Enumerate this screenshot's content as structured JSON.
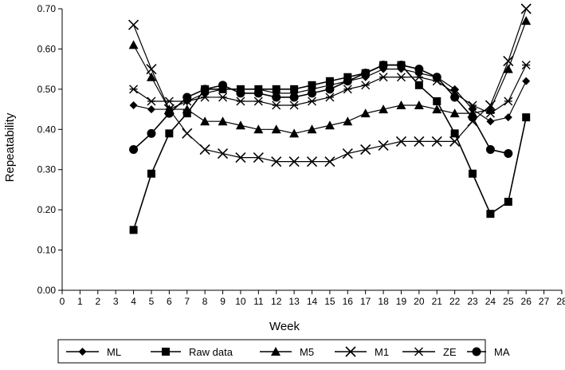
{
  "chart_data": {
    "type": "line",
    "title": "",
    "xlabel": "Week",
    "ylabel": "Repeatability",
    "xlim": [
      0,
      28
    ],
    "ylim": [
      0,
      0.7
    ],
    "x_ticks": [
      "0",
      "1",
      "2",
      "3",
      "4",
      "5",
      "6",
      "7",
      "8",
      "9",
      "10",
      "11",
      "12",
      "13",
      "14",
      "15",
      "16",
      "17",
      "18",
      "19",
      "20",
      "21",
      "22",
      "23",
      "24",
      "25",
      "26",
      "27",
      "28"
    ],
    "y_ticks": [
      "0.00",
      "0.10",
      "0.20",
      "0.30",
      "0.40",
      "0.50",
      "0.60",
      "0.70"
    ],
    "grid": false,
    "legend_position": "bottom",
    "series": [
      {
        "name": "ML",
        "marker": "diamond",
        "x": [
          4,
          5,
          6,
          7,
          8,
          9,
          10,
          11,
          12,
          13,
          14,
          15,
          16,
          17,
          18,
          19,
          20,
          21,
          22,
          23,
          24,
          25,
          26
        ],
        "y": [
          0.46,
          0.45,
          0.45,
          0.47,
          0.49,
          0.5,
          0.5,
          0.5,
          0.49,
          0.49,
          0.5,
          0.51,
          0.52,
          0.53,
          0.55,
          0.55,
          0.54,
          0.53,
          0.5,
          0.45,
          0.42,
          0.43,
          0.52
        ]
      },
      {
        "name": "Raw data",
        "marker": "square",
        "x": [
          4,
          5,
          6,
          7,
          8,
          9,
          10,
          11,
          12,
          13,
          14,
          15,
          16,
          17,
          18,
          19,
          20,
          21,
          22,
          23,
          24,
          25,
          26
        ],
        "y": [
          0.15,
          0.29,
          0.39,
          0.44,
          0.5,
          0.5,
          0.5,
          0.5,
          0.5,
          0.5,
          0.51,
          0.52,
          0.53,
          0.54,
          0.56,
          0.56,
          0.51,
          0.47,
          0.39,
          0.29,
          0.19,
          0.22,
          0.43
        ]
      },
      {
        "name": "M5",
        "marker": "triangle",
        "x": [
          4,
          5,
          6,
          7,
          8,
          9,
          10,
          11,
          12,
          13,
          14,
          15,
          16,
          17,
          18,
          19,
          20,
          21,
          22,
          23,
          24,
          25,
          26
        ],
        "y": [
          0.61,
          0.53,
          0.45,
          0.45,
          0.42,
          0.42,
          0.41,
          0.4,
          0.4,
          0.39,
          0.4,
          0.41,
          0.42,
          0.44,
          0.45,
          0.46,
          0.46,
          0.45,
          0.44,
          0.44,
          0.45,
          0.55,
          0.67
        ]
      },
      {
        "name": "M1",
        "marker": "x",
        "x": [
          4,
          5,
          6,
          7,
          8,
          9,
          10,
          11,
          12,
          13,
          14,
          15,
          16,
          17,
          18,
          19,
          20,
          21,
          22,
          23,
          24,
          25,
          26
        ],
        "y": [
          0.66,
          0.55,
          0.45,
          0.39,
          0.35,
          0.34,
          0.33,
          0.33,
          0.32,
          0.32,
          0.32,
          0.32,
          0.34,
          0.35,
          0.36,
          0.37,
          0.37,
          0.37,
          0.37,
          0.42,
          0.46,
          0.57,
          0.7
        ]
      },
      {
        "name": "ZE",
        "marker": "asterisk",
        "x": [
          4,
          5,
          6,
          7,
          8,
          9,
          10,
          11,
          12,
          13,
          14,
          15,
          16,
          17,
          18,
          19,
          20,
          21,
          22,
          23,
          24,
          25,
          26
        ],
        "y": [
          0.5,
          0.47,
          0.47,
          0.47,
          0.48,
          0.48,
          0.47,
          0.47,
          0.46,
          0.46,
          0.47,
          0.48,
          0.5,
          0.51,
          0.53,
          0.53,
          0.53,
          0.52,
          0.49,
          0.46,
          0.44,
          0.47,
          0.56
        ]
      },
      {
        "name": "MA",
        "marker": "circle",
        "x": [
          4,
          5,
          6,
          7,
          8,
          9,
          10,
          11,
          12,
          13,
          14,
          15,
          16,
          17,
          18,
          19,
          20,
          21,
          22,
          23,
          24,
          25
        ],
        "y": [
          0.35,
          0.39,
          0.44,
          0.48,
          0.5,
          0.51,
          0.49,
          0.49,
          0.48,
          0.48,
          0.49,
          0.5,
          0.52,
          0.54,
          0.56,
          0.56,
          0.55,
          0.53,
          0.48,
          0.43,
          0.35,
          0.34
        ]
      }
    ]
  }
}
